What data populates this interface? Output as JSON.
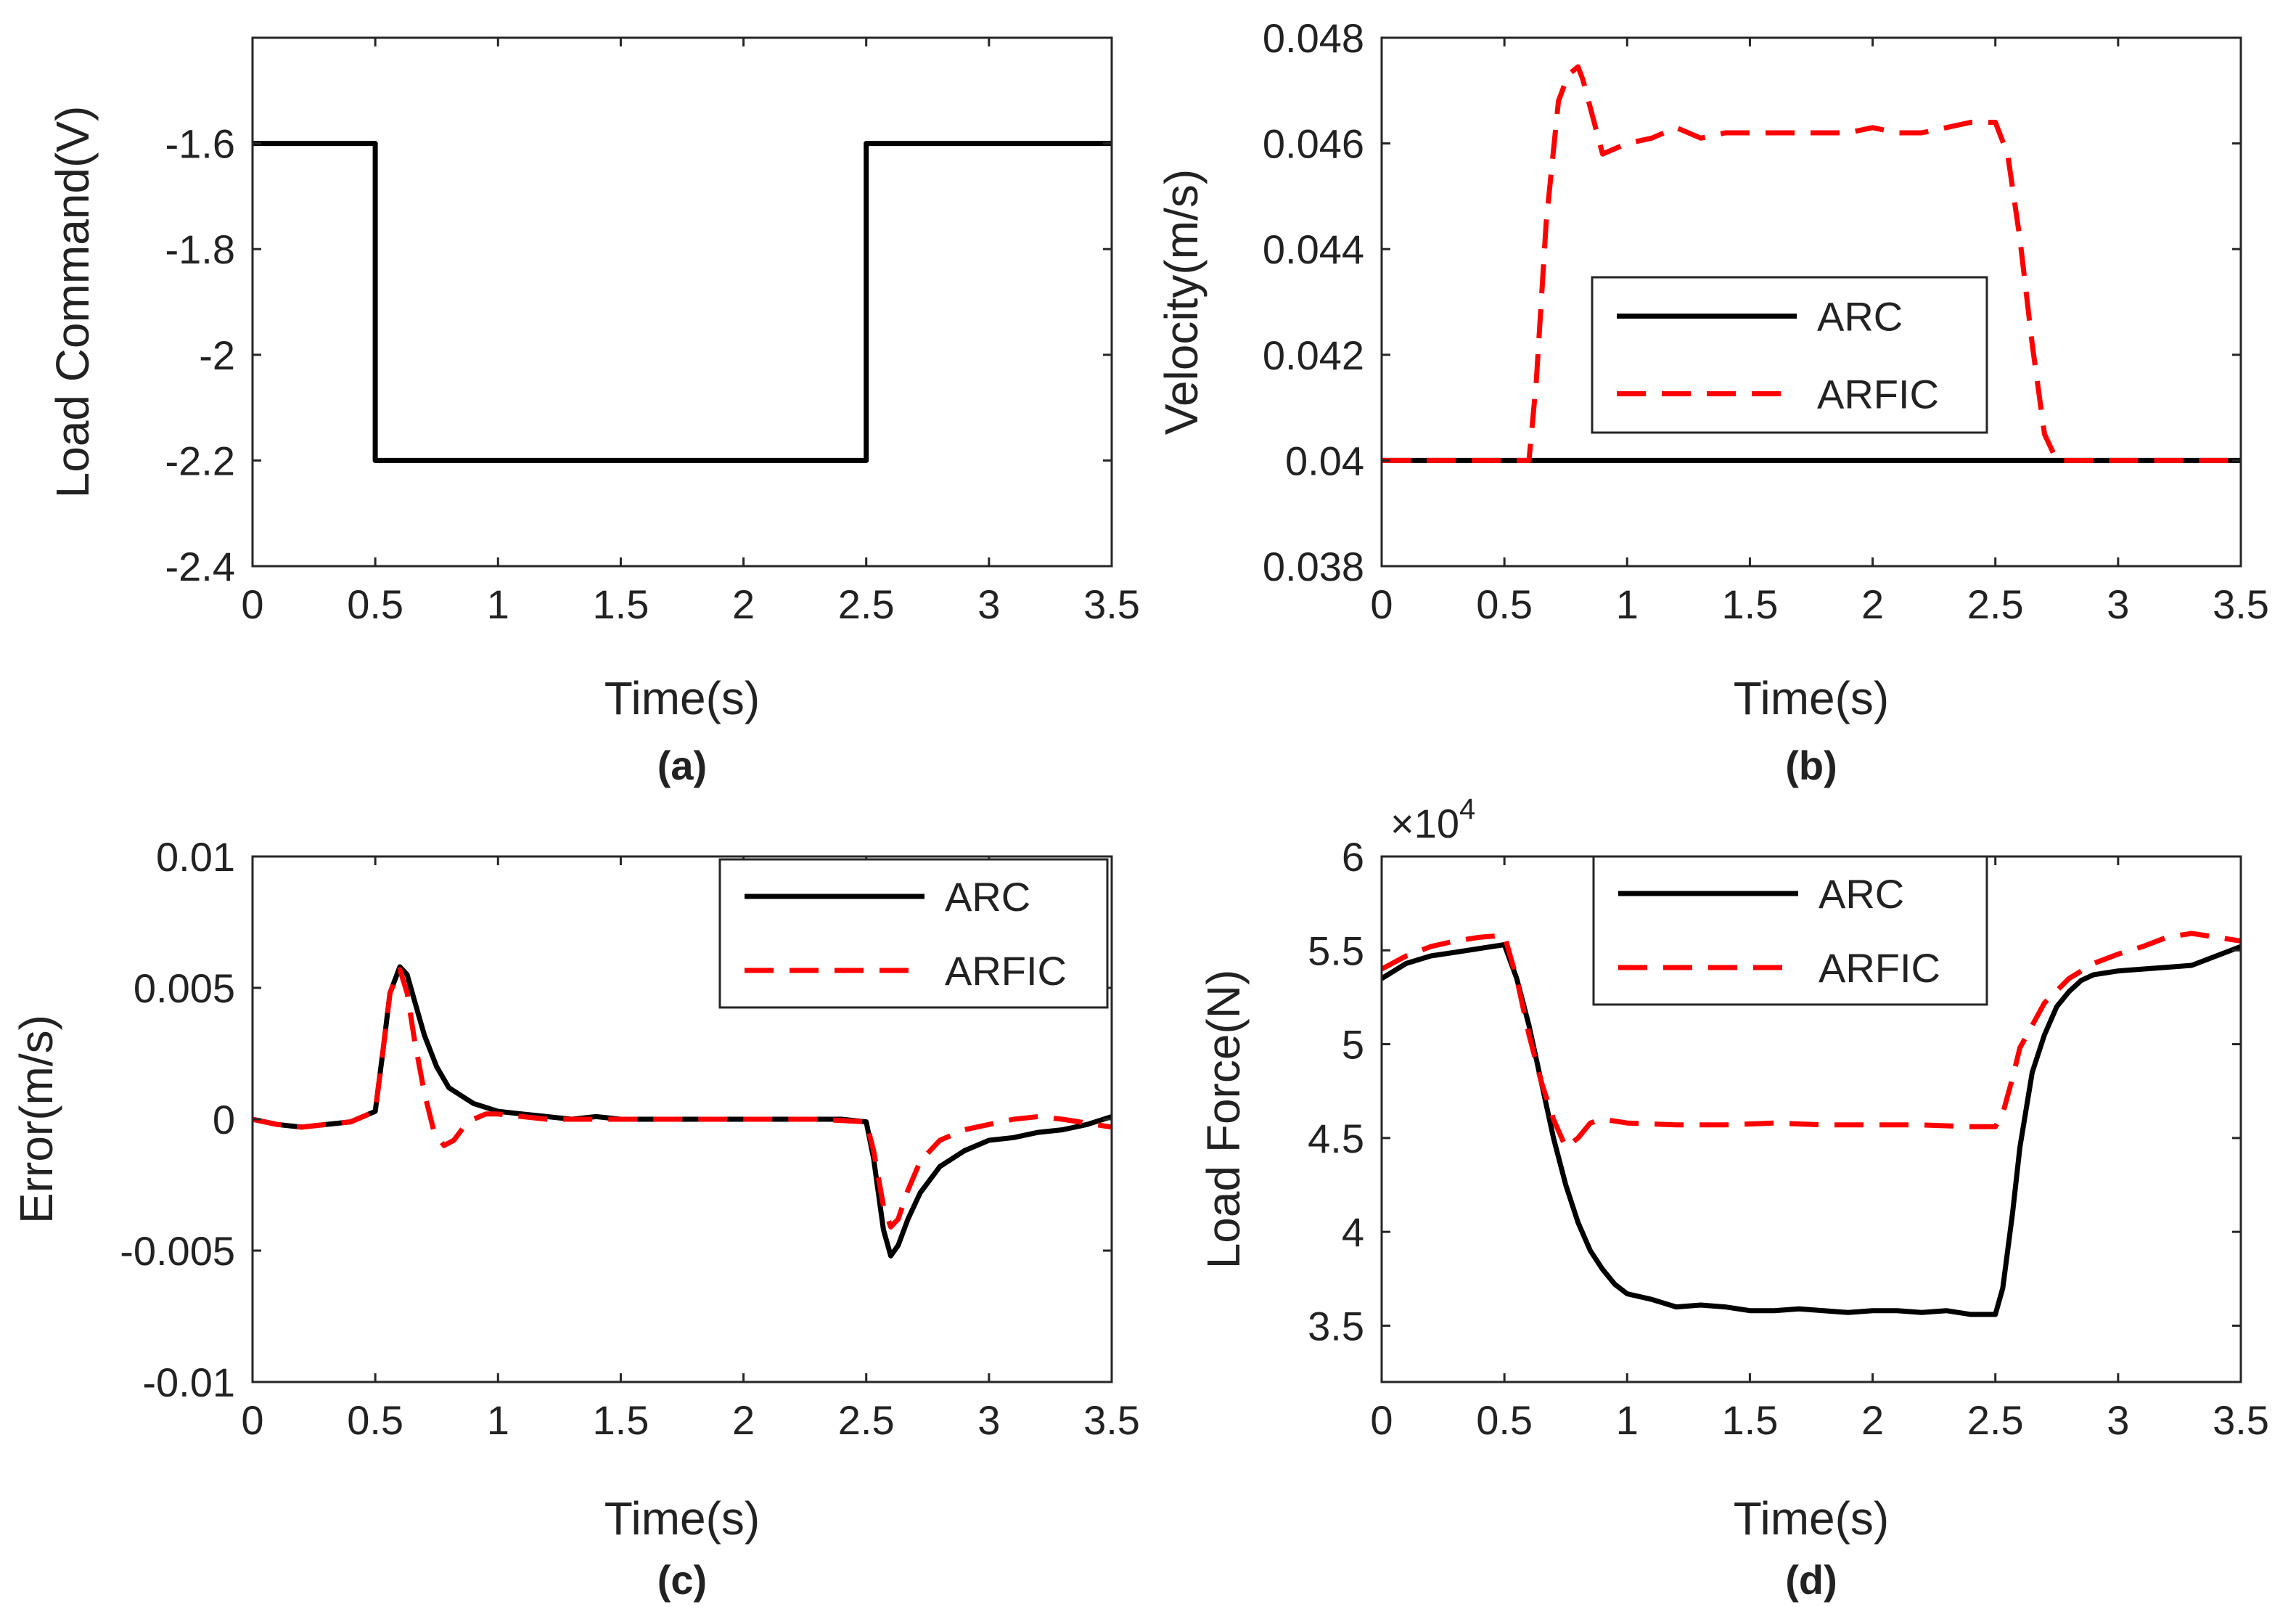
{
  "chart_data": [
    {
      "type": "line",
      "panel_label": "(a)",
      "xlabel": "Time(s)",
      "ylabel": "Load Command(V)",
      "xlim": [
        0,
        3.5
      ],
      "ylim": [
        -2.4,
        -1.4
      ],
      "xticks": [
        0,
        0.5,
        1,
        1.5,
        2,
        2.5,
        3,
        3.5
      ],
      "xtick_labels": [
        "0",
        "0.5",
        "1",
        "1.5",
        "2",
        "2.5",
        "3",
        "3.5"
      ],
      "yticks": [
        -2.4,
        -2.2,
        -2,
        -1.8,
        -1.6
      ],
      "ytick_labels": [
        "-2.4",
        "-2.2",
        "-2",
        "-1.8",
        "-1.6"
      ],
      "legend": null,
      "series": [
        {
          "name": "Load Command",
          "style": "solid",
          "color": "#000000",
          "x": [
            0,
            0.5,
            0.5,
            2.5,
            2.5,
            3.5
          ],
          "y": [
            -1.6,
            -1.6,
            -2.2,
            -2.2,
            -1.6,
            -1.6
          ]
        }
      ]
    },
    {
      "type": "line",
      "panel_label": "(b)",
      "xlabel": "Time(s)",
      "ylabel": "Velocity(m/s)",
      "xlim": [
        0,
        3.5
      ],
      "ylim": [
        0.038,
        0.048
      ],
      "xticks": [
        0,
        0.5,
        1,
        1.5,
        2,
        2.5,
        3,
        3.5
      ],
      "xtick_labels": [
        "0",
        "0.5",
        "1",
        "1.5",
        "2",
        "2.5",
        "3",
        "3.5"
      ],
      "yticks": [
        0.038,
        0.04,
        0.042,
        0.044,
        0.046,
        0.048
      ],
      "ytick_labels": [
        "0.038",
        "0.04",
        "0.042",
        "0.044",
        "0.046",
        "0.048"
      ],
      "legend": {
        "position": "center",
        "entries": [
          "ARC",
          "ARFIC"
        ]
      },
      "series": [
        {
          "name": "ARC",
          "style": "solid",
          "color": "#000000",
          "x": [
            0,
            3.5
          ],
          "y": [
            0.04,
            0.04
          ]
        },
        {
          "name": "ARFIC",
          "style": "dashed",
          "color": "#ff0000",
          "x": [
            0,
            0.6,
            0.63,
            0.67,
            0.72,
            0.76,
            0.8,
            0.82,
            0.86,
            0.9,
            0.95,
            1.0,
            1.1,
            1.2,
            1.3,
            1.4,
            1.5,
            1.6,
            1.7,
            1.8,
            1.9,
            2.0,
            2.1,
            2.2,
            2.3,
            2.4,
            2.5,
            2.55,
            2.6,
            2.65,
            2.7,
            2.75,
            2.8,
            3.5
          ],
          "y": [
            0.04,
            0.04,
            0.0415,
            0.0445,
            0.0468,
            0.0473,
            0.04745,
            0.0472,
            0.0465,
            0.0458,
            0.0459,
            0.046,
            0.0461,
            0.0463,
            0.0461,
            0.0462,
            0.0462,
            0.0462,
            0.0462,
            0.0462,
            0.0462,
            0.0463,
            0.0462,
            0.0462,
            0.0463,
            0.0464,
            0.0464,
            0.0458,
            0.0442,
            0.0422,
            0.0405,
            0.04,
            0.04,
            0.04
          ]
        }
      ]
    },
    {
      "type": "line",
      "panel_label": "(c)",
      "xlabel": "Time(s)",
      "ylabel": "Error(m/s)",
      "xlim": [
        0,
        3.5
      ],
      "ylim": [
        -0.01,
        0.01
      ],
      "xticks": [
        0,
        0.5,
        1,
        1.5,
        2,
        2.5,
        3,
        3.5
      ],
      "xtick_labels": [
        "0",
        "0.5",
        "1",
        "1.5",
        "2",
        "2.5",
        "3",
        "3.5"
      ],
      "yticks": [
        -0.01,
        -0.005,
        0,
        0.005,
        0.01
      ],
      "ytick_labels": [
        "-0.01",
        "-0.005",
        "0",
        "0.005",
        "0.01"
      ],
      "legend": {
        "position": "top-right",
        "entries": [
          "ARC",
          "ARFIC"
        ]
      },
      "series": [
        {
          "name": "ARC",
          "style": "solid",
          "color": "#000000",
          "x": [
            0,
            0.1,
            0.2,
            0.3,
            0.4,
            0.5,
            0.53,
            0.56,
            0.6,
            0.63,
            0.66,
            0.7,
            0.75,
            0.8,
            0.9,
            1.0,
            1.1,
            1.2,
            1.3,
            1.4,
            1.5,
            1.6,
            1.7,
            1.8,
            1.9,
            2.0,
            2.1,
            2.2,
            2.3,
            2.4,
            2.5,
            2.53,
            2.57,
            2.6,
            2.63,
            2.67,
            2.72,
            2.8,
            2.9,
            3.0,
            3.1,
            3.2,
            3.3,
            3.4,
            3.5
          ],
          "y": [
            0,
            -0.0002,
            -0.0003,
            -0.0002,
            -0.0001,
            0.0003,
            0.0025,
            0.0048,
            0.0058,
            0.0055,
            0.0045,
            0.0032,
            0.002,
            0.0012,
            0.0006,
            0.0003,
            0.0002,
            0.0001,
            0,
            0.0001,
            0,
            0,
            0,
            0,
            0,
            0,
            0,
            0,
            0,
            0,
            -0.0001,
            -0.0015,
            -0.0042,
            -0.0052,
            -0.0048,
            -0.0038,
            -0.0028,
            -0.0018,
            -0.0012,
            -0.0008,
            -0.0007,
            -0.0005,
            -0.0004,
            -0.0002,
            0.0001
          ]
        },
        {
          "name": "ARFIC",
          "style": "dashed",
          "color": "#ff0000",
          "x": [
            0,
            0.1,
            0.2,
            0.3,
            0.4,
            0.5,
            0.53,
            0.56,
            0.6,
            0.63,
            0.66,
            0.7,
            0.74,
            0.78,
            0.82,
            0.86,
            0.9,
            0.95,
            1.0,
            1.1,
            1.2,
            1.3,
            1.5,
            1.7,
            2.0,
            2.3,
            2.5,
            2.53,
            2.57,
            2.6,
            2.63,
            2.67,
            2.72,
            2.8,
            2.9,
            3.0,
            3.1,
            3.2,
            3.3,
            3.5
          ],
          "y": [
            0,
            -0.0002,
            -0.0003,
            -0.0002,
            -0.0001,
            0.0003,
            0.0025,
            0.0048,
            0.0057,
            0.0048,
            0.003,
            0.001,
            -0.0005,
            -0.001,
            -0.0008,
            -0.0003,
            0,
            0.0002,
            0.0002,
            0.0001,
            0,
            0,
            0,
            0,
            0,
            0,
            -0.0001,
            -0.0012,
            -0.0033,
            -0.0041,
            -0.0038,
            -0.0027,
            -0.0016,
            -0.0008,
            -0.0004,
            -0.0002,
            0,
            0.0001,
            0,
            -0.0003
          ]
        }
      ]
    },
    {
      "type": "line",
      "panel_label": "(d)",
      "xlabel": "Time(s)",
      "ylabel": "Load Force(N)",
      "y_multiplier": "×10",
      "y_multiplier_exponent": "4",
      "xlim": [
        0,
        3.5
      ],
      "ylim": [
        3.2,
        6.0
      ],
      "xticks": [
        0,
        0.5,
        1,
        1.5,
        2,
        2.5,
        3,
        3.5
      ],
      "xtick_labels": [
        "0",
        "0.5",
        "1",
        "1.5",
        "2",
        "2.5",
        "3",
        "3.5"
      ],
      "yticks": [
        3.5,
        4,
        4.5,
        5,
        5.5,
        6
      ],
      "ytick_labels": [
        "3.5",
        "4",
        "4.5",
        "5",
        "5.5",
        "6"
      ],
      "legend": {
        "position": "top-center",
        "entries": [
          "ARC",
          "ARFIC"
        ]
      },
      "series": [
        {
          "name": "ARC",
          "style": "solid",
          "color": "#000000",
          "x": [
            0,
            0.1,
            0.2,
            0.3,
            0.4,
            0.5,
            0.55,
            0.6,
            0.65,
            0.7,
            0.75,
            0.8,
            0.85,
            0.9,
            0.95,
            1.0,
            1.1,
            1.2,
            1.3,
            1.4,
            1.5,
            1.6,
            1.7,
            1.8,
            1.9,
            2.0,
            2.1,
            2.2,
            2.3,
            2.4,
            2.5,
            2.53,
            2.57,
            2.6,
            2.65,
            2.7,
            2.75,
            2.8,
            2.85,
            2.9,
            3.0,
            3.1,
            3.2,
            3.3,
            3.4,
            3.5
          ],
          "y": [
            5.35,
            5.43,
            5.47,
            5.49,
            5.51,
            5.53,
            5.35,
            5.1,
            4.8,
            4.5,
            4.25,
            4.05,
            3.9,
            3.8,
            3.72,
            3.67,
            3.64,
            3.6,
            3.61,
            3.6,
            3.58,
            3.58,
            3.59,
            3.58,
            3.57,
            3.58,
            3.58,
            3.57,
            3.58,
            3.56,
            3.56,
            3.7,
            4.1,
            4.45,
            4.85,
            5.05,
            5.2,
            5.28,
            5.34,
            5.37,
            5.39,
            5.4,
            5.41,
            5.42,
            5.47,
            5.52
          ]
        },
        {
          "name": "ARFIC",
          "style": "dashed",
          "color": "#ff0000",
          "x": [
            0,
            0.1,
            0.2,
            0.3,
            0.4,
            0.5,
            0.55,
            0.6,
            0.65,
            0.7,
            0.75,
            0.8,
            0.85,
            0.9,
            0.95,
            1.0,
            1.2,
            1.4,
            1.6,
            1.8,
            2.0,
            2.2,
            2.4,
            2.5,
            2.53,
            2.57,
            2.6,
            2.7,
            2.8,
            2.9,
            3.0,
            3.1,
            3.2,
            3.3,
            3.4,
            3.5
          ],
          "y": [
            5.4,
            5.47,
            5.52,
            5.55,
            5.57,
            5.58,
            5.35,
            5.05,
            4.8,
            4.6,
            4.45,
            4.5,
            4.58,
            4.6,
            4.59,
            4.58,
            4.57,
            4.57,
            4.58,
            4.57,
            4.57,
            4.57,
            4.56,
            4.56,
            4.63,
            4.82,
            4.98,
            5.22,
            5.35,
            5.43,
            5.48,
            5.52,
            5.57,
            5.59,
            5.57,
            5.55
          ]
        }
      ]
    }
  ]
}
